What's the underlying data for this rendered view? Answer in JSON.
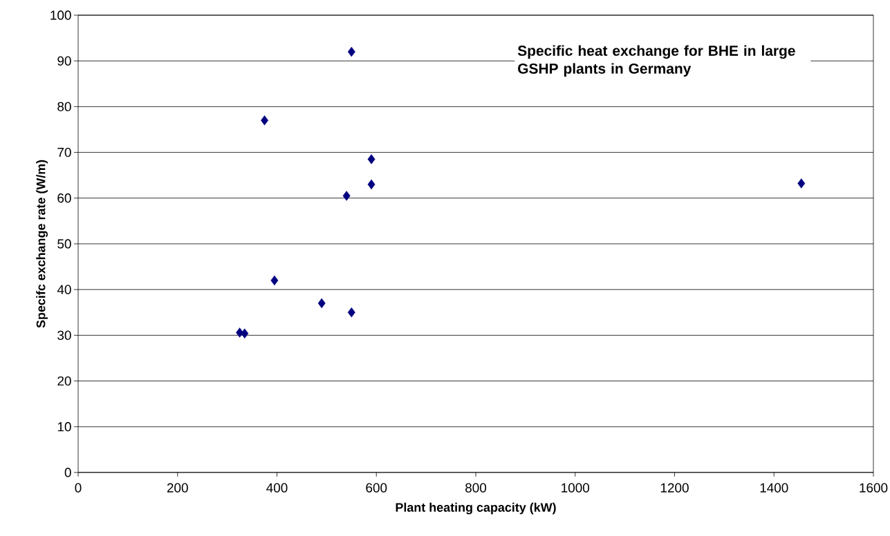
{
  "chart_data": {
    "type": "scatter",
    "title": "Specific heat exchange for BHE in large GSHP plants in Germany",
    "xlabel": "Plant heating capacity (kW)",
    "ylabel": "Specifc exchange rate (W/m)",
    "x": [
      550,
      375,
      590,
      590,
      540,
      395,
      490,
      550,
      325,
      335,
      1455
    ],
    "values": [
      92,
      77,
      68.5,
      63,
      60.5,
      42,
      37,
      35,
      30.6,
      30.4,
      63.2
    ],
    "color": "#000080",
    "marker": "diamond",
    "xlim": [
      0,
      1600
    ],
    "xticks": [
      0,
      200,
      400,
      600,
      800,
      1000,
      1200,
      1400,
      1600
    ],
    "ylim": [
      0,
      100
    ],
    "yticks": [
      0,
      10,
      20,
      30,
      40,
      50,
      60,
      70,
      80,
      90,
      100
    ],
    "grid": "y"
  }
}
